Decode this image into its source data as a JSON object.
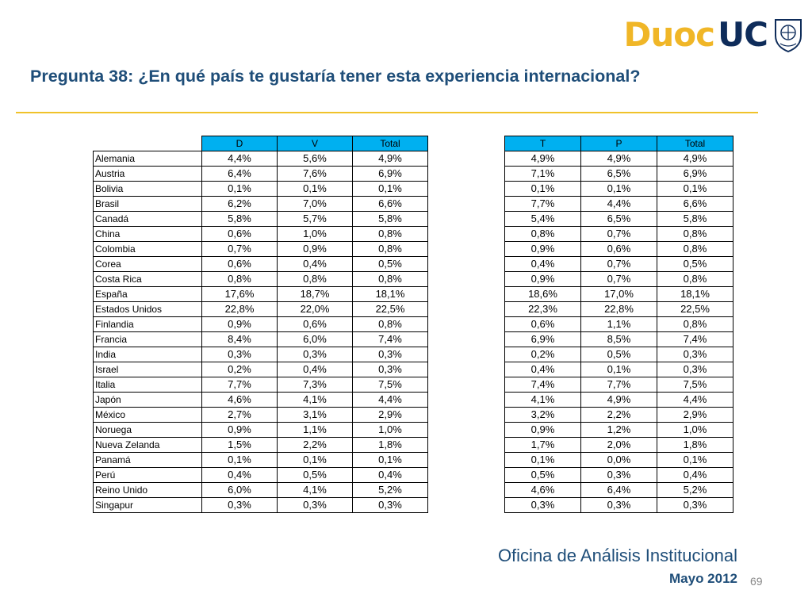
{
  "logo": {
    "part1": "Duoc",
    "part2": "UC"
  },
  "title": "Pregunta 38: ¿En qué país te gustaría tener esta experiencia internacional?",
  "left_table": {
    "headers": [
      "D",
      "V",
      "Total"
    ],
    "rows": [
      {
        "country": "Alemania",
        "values": [
          "4,4%",
          "5,6%",
          "4,9%"
        ]
      },
      {
        "country": "Austria",
        "values": [
          "6,4%",
          "7,6%",
          "6,9%"
        ]
      },
      {
        "country": "Bolivia",
        "values": [
          "0,1%",
          "0,1%",
          "0,1%"
        ]
      },
      {
        "country": "Brasil",
        "values": [
          "6,2%",
          "7,0%",
          "6,6%"
        ]
      },
      {
        "country": "Canadá",
        "values": [
          "5,8%",
          "5,7%",
          "5,8%"
        ]
      },
      {
        "country": "China",
        "values": [
          "0,6%",
          "1,0%",
          "0,8%"
        ]
      },
      {
        "country": "Colombia",
        "values": [
          "0,7%",
          "0,9%",
          "0,8%"
        ]
      },
      {
        "country": "Corea",
        "values": [
          "0,6%",
          "0,4%",
          "0,5%"
        ]
      },
      {
        "country": "Costa Rica",
        "values": [
          "0,8%",
          "0,8%",
          "0,8%"
        ]
      },
      {
        "country": "España",
        "values": [
          "17,6%",
          "18,7%",
          "18,1%"
        ]
      },
      {
        "country": "Estados Unidos",
        "values": [
          "22,8%",
          "22,0%",
          "22,5%"
        ]
      },
      {
        "country": "Finlandia",
        "values": [
          "0,9%",
          "0,6%",
          "0,8%"
        ]
      },
      {
        "country": "Francia",
        "values": [
          "8,4%",
          "6,0%",
          "7,4%"
        ]
      },
      {
        "country": "India",
        "values": [
          "0,3%",
          "0,3%",
          "0,3%"
        ]
      },
      {
        "country": "Israel",
        "values": [
          "0,2%",
          "0,4%",
          "0,3%"
        ]
      },
      {
        "country": "Italia",
        "values": [
          "7,7%",
          "7,3%",
          "7,5%"
        ]
      },
      {
        "country": "Japón",
        "values": [
          "4,6%",
          "4,1%",
          "4,4%"
        ]
      },
      {
        "country": "México",
        "values": [
          "2,7%",
          "3,1%",
          "2,9%"
        ]
      },
      {
        "country": "Noruega",
        "values": [
          "0,9%",
          "1,1%",
          "1,0%"
        ]
      },
      {
        "country": "Nueva Zelanda",
        "values": [
          "1,5%",
          "2,2%",
          "1,8%"
        ]
      },
      {
        "country": "Panamá",
        "values": [
          "0,1%",
          "0,1%",
          "0,1%"
        ]
      },
      {
        "country": "Perú",
        "values": [
          "0,4%",
          "0,5%",
          "0,4%"
        ]
      },
      {
        "country": "Reino Unido",
        "values": [
          "6,0%",
          "4,1%",
          "5,2%"
        ]
      },
      {
        "country": "Singapur",
        "values": [
          "0,3%",
          "0,3%",
          "0,3%"
        ]
      }
    ]
  },
  "right_table": {
    "headers": [
      "T",
      "P",
      "Total"
    ],
    "rows": [
      [
        "4,9%",
        "4,9%",
        "4,9%"
      ],
      [
        "7,1%",
        "6,5%",
        "6,9%"
      ],
      [
        "0,1%",
        "0,1%",
        "0,1%"
      ],
      [
        "7,7%",
        "4,4%",
        "6,6%"
      ],
      [
        "5,4%",
        "6,5%",
        "5,8%"
      ],
      [
        "0,8%",
        "0,7%",
        "0,8%"
      ],
      [
        "0,9%",
        "0,6%",
        "0,8%"
      ],
      [
        "0,4%",
        "0,7%",
        "0,5%"
      ],
      [
        "0,9%",
        "0,7%",
        "0,8%"
      ],
      [
        "18,6%",
        "17,0%",
        "18,1%"
      ],
      [
        "22,3%",
        "22,8%",
        "22,5%"
      ],
      [
        "0,6%",
        "1,1%",
        "0,8%"
      ],
      [
        "6,9%",
        "8,5%",
        "7,4%"
      ],
      [
        "0,2%",
        "0,5%",
        "0,3%"
      ],
      [
        "0,4%",
        "0,1%",
        "0,3%"
      ],
      [
        "7,4%",
        "7,7%",
        "7,5%"
      ],
      [
        "4,1%",
        "4,9%",
        "4,4%"
      ],
      [
        "3,2%",
        "2,2%",
        "2,9%"
      ],
      [
        "0,9%",
        "1,2%",
        "1,0%"
      ],
      [
        "1,7%",
        "2,0%",
        "1,8%"
      ],
      [
        "0,1%",
        "0,0%",
        "0,1%"
      ],
      [
        "0,5%",
        "0,3%",
        "0,4%"
      ],
      [
        "4,6%",
        "6,4%",
        "5,2%"
      ],
      [
        "0,3%",
        "0,3%",
        "0,3%"
      ]
    ]
  },
  "footer": {
    "office": "Oficina de Análisis Institucional",
    "date": "Mayo 2012",
    "page": "69"
  },
  "colors": {
    "title": "#1f4e79",
    "header_fill": "#00b0f0",
    "rule": "#f0c22a",
    "logo_yellow": "#f0b627",
    "logo_navy": "#0e2c5a"
  }
}
